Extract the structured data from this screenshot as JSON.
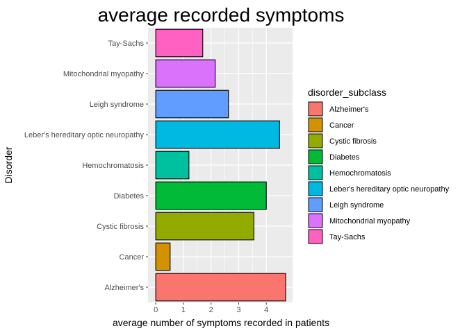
{
  "chart_data": {
    "type": "bar",
    "orientation": "horizontal",
    "title": "average recorded symptoms",
    "xlabel": "average number of symptoms recorded in patients",
    "ylabel": "Disorder",
    "xlim": [
      -0.28,
      4.95
    ],
    "xticks": [
      0,
      1,
      2,
      3,
      4
    ],
    "grid": true,
    "legend_position": "right",
    "legend_title": "disorder_subclass",
    "categories": [
      "Alzheimer's",
      "Cancer",
      "Cystic fibrosis",
      "Diabetes",
      "Hemochromatosis",
      "Leber's hereditary optic neuropathy",
      "Leigh syndrome",
      "Mitochondrial myopathy",
      "Tay-Sachs"
    ],
    "values": [
      4.7,
      0.52,
      3.55,
      4.0,
      1.2,
      4.48,
      2.63,
      2.15,
      1.7
    ],
    "colors": [
      "#F8766D",
      "#D39200",
      "#93AA00",
      "#00BA38",
      "#00C19F",
      "#00B9E3",
      "#619CFF",
      "#DB72FB",
      "#FF61C3"
    ]
  }
}
